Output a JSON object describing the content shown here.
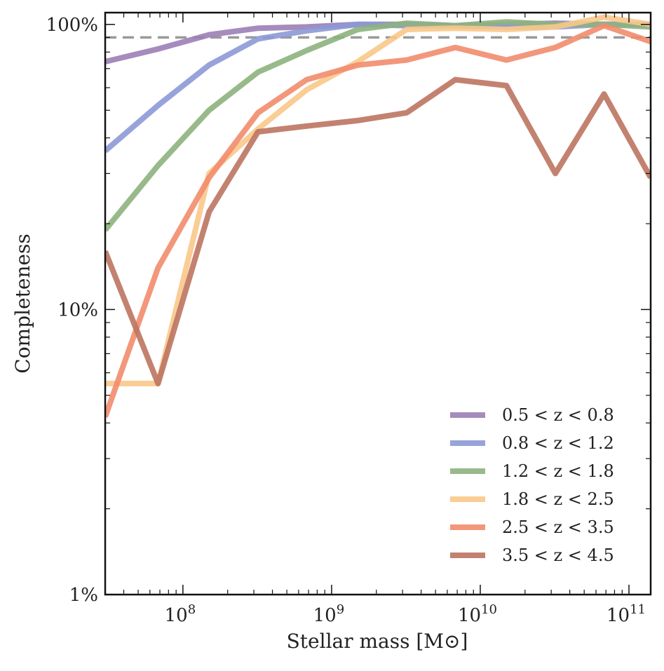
{
  "chart_data": {
    "type": "line",
    "xlabel": "Stellar mass [M⊙]",
    "ylabel": "Completeness",
    "xscale": "log",
    "yscale": "log",
    "xlim": [
      30000000,
      140000000000
    ],
    "ylim": [
      0.01,
      1.1
    ],
    "x_ticks": [
      {
        "value": 100000000,
        "base": "10",
        "exp": "8"
      },
      {
        "value": 1000000000,
        "base": "10",
        "exp": "9"
      },
      {
        "value": 10000000000,
        "base": "10",
        "exp": "10"
      },
      {
        "value": 100000000000,
        "base": "10",
        "exp": "11"
      }
    ],
    "y_ticks": [
      {
        "value": 0.01,
        "label": "1%"
      },
      {
        "value": 0.1,
        "label": "10%"
      },
      {
        "value": 1.0,
        "label": "100%"
      }
    ],
    "reference_line": {
      "y": 0.9,
      "style": "dashed",
      "color": "#9a9a9a"
    },
    "grid": false,
    "legend_position": "lower-right",
    "x": [
      30000000,
      68000000,
      150000000,
      320000000,
      680000000,
      1500000000,
      3200000000,
      6800000000,
      15000000000,
      32000000000,
      68000000000,
      140000000000
    ],
    "series": [
      {
        "name": "0.5 < z < 0.8",
        "color": "#9b7fb6",
        "values": [
          0.74,
          0.82,
          0.92,
          0.97,
          0.98,
          1.0,
          1.0,
          0.99,
          1.0,
          1.01,
          1.0,
          1.0
        ]
      },
      {
        "name": "0.8 < z < 1.2",
        "color": "#8c99d6",
        "values": [
          0.36,
          0.52,
          0.72,
          0.89,
          0.95,
          1.0,
          0.99,
          0.99,
          0.98,
          0.98,
          1.0,
          1.0
        ]
      },
      {
        "name": "1.2 < z < 1.8",
        "color": "#8db37e",
        "values": [
          0.19,
          0.32,
          0.5,
          0.68,
          0.81,
          0.96,
          1.01,
          0.99,
          1.02,
          1.0,
          1.0,
          0.98
        ]
      },
      {
        "name": "1.8 < z < 2.5",
        "color": "#f9c88a",
        "values": [
          0.055,
          0.055,
          0.3,
          0.43,
          0.59,
          0.74,
          0.96,
          0.97,
          0.96,
          0.98,
          1.06,
          1.0
        ]
      },
      {
        "name": "2.5 < z < 3.5",
        "color": "#f28c6d",
        "values": [
          0.042,
          0.14,
          0.29,
          0.49,
          0.64,
          0.72,
          0.75,
          0.83,
          0.75,
          0.83,
          0.99,
          0.87
        ]
      },
      {
        "name": "3.5 < z < 4.5",
        "color": "#bd7460",
        "values": [
          0.16,
          0.055,
          0.22,
          0.42,
          0.44,
          0.46,
          0.49,
          0.64,
          0.61,
          0.3,
          0.57,
          0.29
        ]
      }
    ]
  }
}
